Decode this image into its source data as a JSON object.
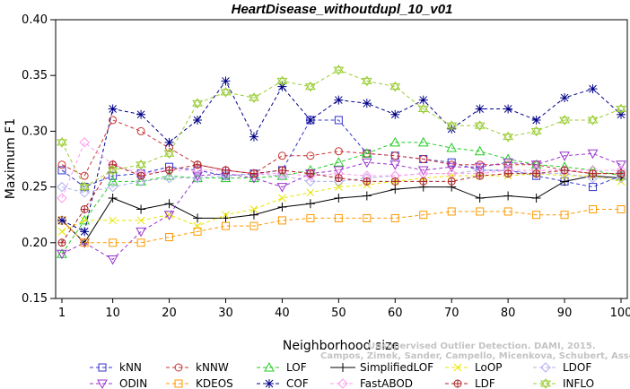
{
  "chart_data": {
    "type": "line",
    "title": "HeartDisease_withoutdupl_10_v01",
    "xlabel": "Neighborhood size",
    "ylabel": "Maximum F1",
    "xlim": [
      1,
      100
    ],
    "ylim": [
      0.15,
      0.4
    ],
    "x_ticks": [
      1,
      10,
      20,
      30,
      40,
      50,
      60,
      70,
      80,
      90,
      100
    ],
    "y_ticks": [
      0.15,
      0.2,
      0.25,
      0.3,
      0.35,
      0.4
    ],
    "grid": false,
    "legend_position": "bottom",
    "watermark": [
      "Unsupervised Outlier Detection. DAMI, 2015.",
      "Campos, Zimek, Sander, Campello, Micenkova, Schubert, Assent, Houle"
    ],
    "series": [
      {
        "name": "kNN",
        "color": "#3333cc",
        "marker": "square",
        "dash": "4,3",
        "x": [
          1,
          5,
          10,
          15,
          20,
          25,
          30,
          35,
          40,
          45,
          50,
          55,
          60,
          65,
          70,
          75,
          80,
          85,
          90,
          95,
          100
        ],
        "y": [
          0.265,
          0.25,
          0.26,
          0.262,
          0.268,
          0.265,
          0.26,
          0.262,
          0.265,
          0.31,
          0.31,
          0.28,
          0.278,
          0.275,
          0.272,
          0.265,
          0.265,
          0.26,
          0.255,
          0.25,
          0.26
        ]
      },
      {
        "name": "kNNW",
        "color": "#cc3333",
        "marker": "circle",
        "dash": "4,3",
        "x": [
          1,
          5,
          10,
          15,
          20,
          25,
          30,
          35,
          40,
          45,
          50,
          55,
          60,
          65,
          70,
          75,
          80,
          85,
          90,
          95,
          100
        ],
        "y": [
          0.27,
          0.26,
          0.31,
          0.3,
          0.285,
          0.27,
          0.265,
          0.262,
          0.278,
          0.278,
          0.282,
          0.28,
          0.278,
          0.275,
          0.27,
          0.27,
          0.27,
          0.27,
          0.265,
          0.262,
          0.262
        ]
      },
      {
        "name": "LOF",
        "color": "#22cc22",
        "marker": "triangle",
        "dash": "4,3",
        "x": [
          1,
          5,
          10,
          15,
          20,
          25,
          30,
          35,
          40,
          45,
          50,
          55,
          60,
          65,
          70,
          75,
          80,
          85,
          90,
          95,
          100
        ],
        "y": [
          0.19,
          0.22,
          0.255,
          0.255,
          0.26,
          0.258,
          0.258,
          0.258,
          0.26,
          0.265,
          0.272,
          0.28,
          0.29,
          0.29,
          0.285,
          0.282,
          0.275,
          0.27,
          0.268,
          0.265,
          0.26
        ]
      },
      {
        "name": "SimplifiedLOF",
        "color": "#000000",
        "marker": "plus",
        "dash": "",
        "x": [
          1,
          5,
          10,
          15,
          20,
          25,
          30,
          35,
          40,
          45,
          50,
          55,
          60,
          65,
          70,
          75,
          80,
          85,
          90,
          95,
          100
        ],
        "y": [
          0.22,
          0.2,
          0.24,
          0.23,
          0.235,
          0.222,
          0.222,
          0.225,
          0.232,
          0.235,
          0.24,
          0.242,
          0.248,
          0.25,
          0.25,
          0.24,
          0.242,
          0.24,
          0.255,
          0.26,
          0.258
        ]
      },
      {
        "name": "LoOP",
        "color": "#e6e600",
        "marker": "x",
        "dash": "4,3",
        "x": [
          1,
          5,
          10,
          15,
          20,
          25,
          30,
          35,
          40,
          45,
          50,
          55,
          60,
          65,
          70,
          75,
          80,
          85,
          90,
          95,
          100
        ],
        "y": [
          0.21,
          0.22,
          0.22,
          0.22,
          0.225,
          0.215,
          0.225,
          0.23,
          0.24,
          0.245,
          0.25,
          0.252,
          0.255,
          0.258,
          0.26,
          0.26,
          0.26,
          0.262,
          0.26,
          0.26,
          0.255
        ]
      },
      {
        "name": "LDOF",
        "color": "#b0b0ee",
        "marker": "diamond",
        "dash": "4,3",
        "x": [
          1,
          5,
          10,
          15,
          20,
          25,
          30,
          35,
          40,
          45,
          50,
          55,
          60,
          65,
          70,
          75,
          80,
          85,
          90,
          95,
          100
        ],
        "y": [
          0.25,
          0.245,
          0.25,
          0.255,
          0.258,
          0.258,
          0.26,
          0.262,
          0.26,
          0.255,
          0.255,
          0.258,
          0.26,
          0.262,
          0.262,
          0.265,
          0.265,
          0.262,
          0.262,
          0.258,
          0.258
        ]
      },
      {
        "name": "ODIN",
        "color": "#9933cc",
        "marker": "triangle-down",
        "dash": "4,3",
        "x": [
          1,
          5,
          10,
          15,
          20,
          25,
          30,
          35,
          40,
          45,
          50,
          55,
          60,
          65,
          70,
          75,
          80,
          85,
          90,
          95,
          100
        ],
        "y": [
          0.19,
          0.2,
          0.185,
          0.21,
          0.225,
          0.26,
          0.262,
          0.258,
          0.25,
          0.262,
          0.265,
          0.272,
          0.27,
          0.265,
          0.268,
          0.268,
          0.272,
          0.27,
          0.278,
          0.28,
          0.27
        ]
      },
      {
        "name": "KDEOS",
        "color": "#ff9900",
        "marker": "square",
        "dash": "4,3",
        "x": [
          1,
          5,
          10,
          15,
          20,
          25,
          30,
          35,
          40,
          45,
          50,
          55,
          60,
          65,
          70,
          75,
          80,
          85,
          90,
          95,
          100
        ],
        "y": [
          0.22,
          0.2,
          0.2,
          0.2,
          0.205,
          0.21,
          0.215,
          0.215,
          0.22,
          0.222,
          0.222,
          0.222,
          0.222,
          0.225,
          0.228,
          0.228,
          0.228,
          0.225,
          0.225,
          0.23,
          0.23
        ]
      },
      {
        "name": "COF",
        "color": "#000088",
        "marker": "star",
        "dash": "4,3",
        "x": [
          1,
          5,
          10,
          15,
          20,
          25,
          30,
          35,
          40,
          45,
          50,
          55,
          60,
          65,
          70,
          75,
          80,
          85,
          90,
          95,
          100
        ],
        "y": [
          0.22,
          0.21,
          0.32,
          0.315,
          0.29,
          0.31,
          0.345,
          0.295,
          0.34,
          0.31,
          0.328,
          0.325,
          0.315,
          0.328,
          0.302,
          0.32,
          0.32,
          0.31,
          0.33,
          0.338,
          0.315
        ]
      },
      {
        "name": "FastABOD",
        "color": "#ff99ee",
        "marker": "diamond",
        "dash": "4,3",
        "x": [
          1,
          5,
          10,
          15,
          20,
          25,
          30,
          35,
          40,
          45,
          50,
          55,
          60,
          65,
          70,
          75,
          80,
          85,
          90,
          95,
          100
        ],
        "y": [
          0.24,
          0.29,
          0.27,
          0.262,
          0.265,
          0.265,
          0.265,
          0.262,
          0.262,
          0.26,
          0.262,
          0.26,
          0.26,
          0.262,
          0.262,
          0.262,
          0.265,
          0.265,
          0.265,
          0.265,
          0.265
        ]
      },
      {
        "name": "LDF",
        "color": "#aa2222",
        "marker": "circle-plus",
        "dash": "4,3",
        "x": [
          1,
          5,
          10,
          15,
          20,
          25,
          30,
          35,
          40,
          45,
          50,
          55,
          60,
          65,
          70,
          75,
          80,
          85,
          90,
          95,
          100
        ],
        "y": [
          0.2,
          0.23,
          0.27,
          0.26,
          0.265,
          0.27,
          0.265,
          0.262,
          0.265,
          0.262,
          0.258,
          0.255,
          0.255,
          0.255,
          0.255,
          0.26,
          0.262,
          0.262,
          0.265,
          0.262,
          0.262
        ]
      },
      {
        "name": "INFLO",
        "color": "#99cc33",
        "marker": "hexstar",
        "dash": "4,3",
        "x": [
          1,
          5,
          10,
          15,
          20,
          25,
          30,
          35,
          40,
          45,
          50,
          55,
          60,
          65,
          70,
          75,
          80,
          85,
          90,
          95,
          100
        ],
        "y": [
          0.29,
          0.25,
          0.265,
          0.27,
          0.28,
          0.325,
          0.335,
          0.33,
          0.345,
          0.34,
          0.355,
          0.345,
          0.34,
          0.32,
          0.305,
          0.305,
          0.295,
          0.3,
          0.31,
          0.31,
          0.32
        ]
      }
    ]
  }
}
